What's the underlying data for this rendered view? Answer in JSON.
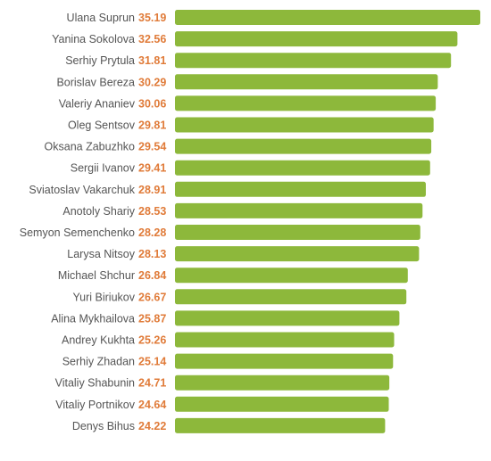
{
  "chart_data": {
    "type": "bar",
    "orientation": "horizontal",
    "colors": {
      "bar": "#8db83b",
      "value_label": "#e07b39",
      "name_label": "#555555"
    },
    "xlim": [
      0,
      35.19
    ],
    "categories": [
      "Ulana Suprun",
      "Yanina Sokolova",
      "Serhiy Prytula",
      "Borislav Bereza",
      "Valeriy Ananiev",
      "Oleg Sentsov",
      "Oksana Zabuzhko",
      "Sergii Ivanov",
      "Sviatoslav Vakarchuk",
      "Anotoly Shariy",
      "Semyon Semenchenko",
      "Larysa Nitsoy",
      "Michael Shchur",
      "Yuri Biriukov",
      "Alina Mykhailova",
      "Andrey Kukhta",
      "Serhiy Zhadan",
      "Vitaliy Shabunin",
      "Vitaliy Portnikov",
      "Denys Bihus"
    ],
    "values": [
      35.19,
      32.56,
      31.81,
      30.29,
      30.06,
      29.81,
      29.54,
      29.41,
      28.91,
      28.53,
      28.28,
      28.13,
      26.84,
      26.67,
      25.87,
      25.26,
      25.14,
      24.71,
      24.64,
      24.22
    ],
    "value_labels": [
      "35.19",
      "32.56",
      "31.81",
      "30.29",
      "30.06",
      "29.81",
      "29.54",
      "29.41",
      "28.91",
      "28.53",
      "28.28",
      "28.13",
      "26.84",
      "26.67",
      "25.87",
      "25.26",
      "25.14",
      "24.71",
      "24.64",
      "24.22"
    ]
  }
}
